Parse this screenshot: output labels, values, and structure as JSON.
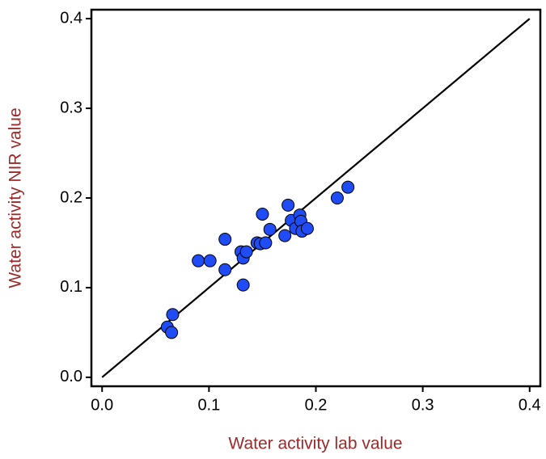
{
  "chart_data": {
    "type": "scatter",
    "x_label": "Water activity lab value",
    "y_label": "Water activity NIR value",
    "x": [
      0.061,
      0.065,
      0.066,
      0.09,
      0.101,
      0.115,
      0.115,
      0.13,
      0.132,
      0.135,
      0.132,
      0.145,
      0.148,
      0.15,
      0.153,
      0.157,
      0.171,
      0.174,
      0.177,
      0.181,
      0.185,
      0.186,
      0.187,
      0.192,
      0.22,
      0.23
    ],
    "y": [
      0.056,
      0.05,
      0.07,
      0.13,
      0.13,
      0.154,
      0.12,
      0.14,
      0.133,
      0.14,
      0.103,
      0.15,
      0.149,
      0.182,
      0.15,
      0.165,
      0.158,
      0.192,
      0.175,
      0.166,
      0.181,
      0.174,
      0.163,
      0.166,
      0.2,
      0.212
    ],
    "color": "#1f4cf5",
    "reference_line": {
      "x": [
        0,
        0.4
      ],
      "y": [
        0,
        0.4
      ],
      "color": "#000000"
    },
    "xlim": [
      -0.01,
      0.41
    ],
    "ylim": [
      -0.01,
      0.41
    ],
    "xticks": [
      {
        "value": 0,
        "label": "0.0"
      },
      0.1,
      0.2,
      0.3,
      0.4
    ],
    "yticks": [
      {
        "value": 0,
        "label": "0.0"
      },
      0.1,
      0.2,
      0.3,
      0.4
    ],
    "grid": false
  }
}
